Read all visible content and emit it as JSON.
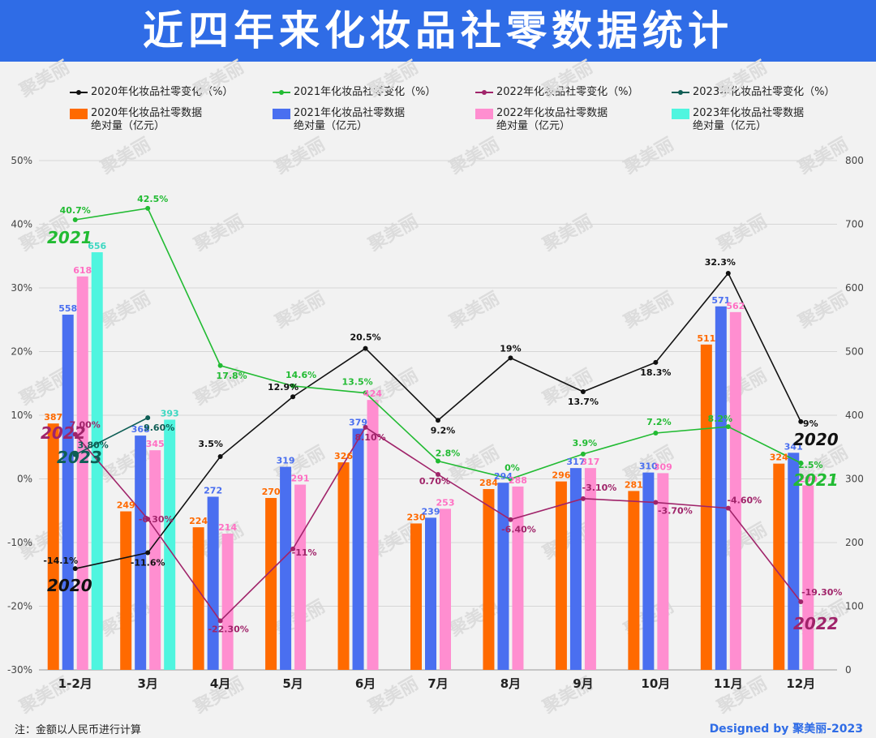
{
  "page": {
    "title": "近四年来化妆品社零数据统计"
  },
  "footer": {
    "note": "注：金额以人民币进行计算",
    "credit": "Designed by 聚美丽-2023"
  },
  "colors": {
    "y2020_line": "#111111",
    "y2021_line": "#22bb33",
    "y2022_line": "#a0246a",
    "y2023_line": "#0e5e55",
    "y2020_bar": "#ff6a00",
    "y2021_bar": "#4a6ff0",
    "y2022_bar": "#ff8ed0",
    "y2023_bar": "#4ff5df"
  },
  "chart_data": {
    "type": "bar+line",
    "categories": [
      "1-2月",
      "3月",
      "4月",
      "5月",
      "6月",
      "7月",
      "8月",
      "9月",
      "10月",
      "11月",
      "12月"
    ],
    "y_left": {
      "min": -30,
      "max": 50,
      "ticks": [
        "50%",
        "40%",
        "30%",
        "20%",
        "10%",
        "0%",
        "-10%",
        "-20%",
        "-30%"
      ]
    },
    "y_right": {
      "min": 0,
      "max": 800,
      "ticks": [
        "800",
        "700",
        "600",
        "500",
        "400",
        "300",
        "200",
        "100",
        "0"
      ]
    },
    "bar_series": [
      {
        "name": "2020年化妆品社零数据\n绝对量（亿元）",
        "values": [
          387,
          249,
          224,
          270,
          326,
          230,
          284,
          296,
          281,
          511,
          324
        ],
        "labels": [
          "387",
          "249",
          "224",
          "270",
          "326",
          "230",
          "284",
          "296",
          "281",
          "511",
          "324"
        ]
      },
      {
        "name": "2021年化妆品社零数据\n绝对量（亿元）",
        "values": [
          558,
          368,
          272,
          319,
          379,
          239,
          294,
          317,
          310,
          571,
          341
        ],
        "labels": [
          "558",
          "368",
          "272",
          "319",
          "379",
          "239",
          "294",
          "317",
          "310",
          "571",
          "341"
        ]
      },
      {
        "name": "2022年化妆品社零数据\n绝对量（亿元）",
        "values": [
          618,
          345,
          214,
          291,
          424,
          253,
          288,
          317,
          309,
          562,
          290
        ],
        "labels": [
          "618",
          "345",
          "214",
          "291",
          "424",
          "253",
          "288",
          "317",
          "309",
          "562",
          "290"
        ]
      },
      {
        "name": "2023年化妆品社零数据\n绝对量（亿元）",
        "values": [
          656,
          393
        ],
        "labels": [
          "656",
          "393"
        ]
      }
    ],
    "line_series": [
      {
        "name": "2020年化妆品社零变化（%）",
        "values": [
          -14.1,
          -11.6,
          3.5,
          12.9,
          20.5,
          9.2,
          19,
          13.7,
          18.3,
          32.3,
          9
        ],
        "labels": [
          "-14.1%",
          "-11.6%",
          "3.5%",
          "12.9%",
          "20.5%",
          "9.2%",
          "19%",
          "13.7%",
          "18.3%",
          "32.3%",
          "9%"
        ]
      },
      {
        "name": "2021年化妆品社零变化（%）",
        "values": [
          40.7,
          42.5,
          17.8,
          14.6,
          13.5,
          2.8,
          0,
          3.9,
          7.2,
          8.2,
          2.5
        ],
        "labels": [
          "40.7%",
          "42.5%",
          "17.8%",
          "14.6%",
          "13.5%",
          "2.8%",
          "0%",
          "3.9%",
          "7.2%",
          "8.2%",
          "2.5%"
        ]
      },
      {
        "name": "2022年化妆品社零变化（%）",
        "values": [
          7.0,
          -6.3,
          -22.3,
          -11,
          8.1,
          0.7,
          -6.4,
          -3.1,
          -3.7,
          -4.6,
          -19.3
        ],
        "labels": [
          "7.00%",
          "-6.30%",
          "-22.30%",
          "-11%",
          "8.10%",
          "0.70%",
          "-6.40%",
          "-3.10%",
          "-3.70%",
          "-4.60%",
          "-19.30%"
        ]
      },
      {
        "name": "2023年化妆品社零变化（%）",
        "values": [
          3.8,
          9.6
        ],
        "labels": [
          "3.80%",
          "9.60%"
        ]
      }
    ],
    "series_tags": {
      "y2020": "2020",
      "y2021": "2021",
      "y2022": "2022",
      "y2023": "2023"
    },
    "watermark": "聚美丽"
  }
}
